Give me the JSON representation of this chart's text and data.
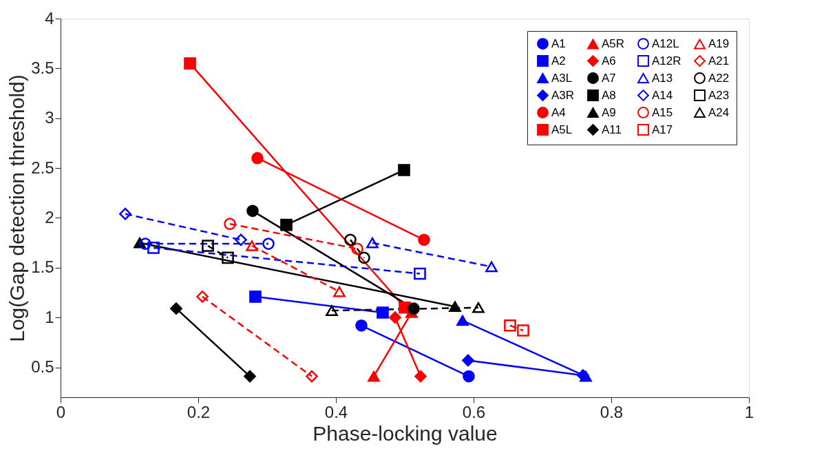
{
  "chart_data": {
    "type": "line",
    "xlabel": "Phase-locking value",
    "ylabel": "Log(Gap detection threshold)",
    "xlim": [
      0,
      1
    ],
    "xticks": [
      0,
      0.2,
      0.4,
      0.6,
      0.8,
      1
    ],
    "ylim": [
      0.2,
      4
    ],
    "yticks": [
      0.5,
      1,
      1.5,
      2,
      2.5,
      3,
      3.5,
      4
    ],
    "grid": false,
    "legend": "top right",
    "series": [
      {
        "name": "A1",
        "color": "#0000ff",
        "marker": "circle",
        "line_style": "solid",
        "x": [
          0.437,
          0.593
        ],
        "values": [
          0.92,
          0.41
        ]
      },
      {
        "name": "A2",
        "color": "#0000ff",
        "marker": "square",
        "line_style": "solid",
        "x": [
          0.283,
          0.468
        ],
        "values": [
          1.21,
          1.05
        ]
      },
      {
        "name": "A3L",
        "color": "#0000ff",
        "marker": "triangle",
        "line_style": "solid",
        "x": [
          0.584,
          0.763
        ],
        "values": [
          0.97,
          0.41
        ]
      },
      {
        "name": "A3R",
        "color": "#0000ff",
        "marker": "diamond",
        "line_style": "solid",
        "x": [
          0.592,
          0.759
        ],
        "values": [
          0.57,
          0.42
        ]
      },
      {
        "name": "A4",
        "color": "#ff0000",
        "marker": "circle",
        "line_style": "solid",
        "x": [
          0.286,
          0.528
        ],
        "values": [
          2.6,
          1.78
        ]
      },
      {
        "name": "A5L",
        "color": "#ff0000",
        "marker": "square",
        "line_style": "solid",
        "x": [
          0.188,
          0.5
        ],
        "values": [
          3.55,
          1.1
        ]
      },
      {
        "name": "A5R",
        "color": "#ff0000",
        "marker": "triangle",
        "line_style": "solid",
        "x": [
          0.455,
          0.51
        ],
        "values": [
          0.41,
          1.05
        ]
      },
      {
        "name": "A6",
        "color": "#ff0000",
        "marker": "diamond",
        "line_style": "solid",
        "x": [
          0.486,
          0.523
        ],
        "values": [
          1.0,
          0.41
        ]
      },
      {
        "name": "A7",
        "color": "#000000",
        "marker": "circle",
        "line_style": "solid",
        "x": [
          0.279,
          0.513
        ],
        "values": [
          2.07,
          1.09
        ]
      },
      {
        "name": "A8",
        "color": "#000000",
        "marker": "square",
        "line_style": "solid",
        "x": [
          0.328,
          0.499
        ],
        "values": [
          1.93,
          2.48
        ]
      },
      {
        "name": "A9",
        "color": "#000000",
        "marker": "triangle",
        "line_style": "solid",
        "x": [
          0.115,
          0.573
        ],
        "values": [
          1.75,
          1.11
        ]
      },
      {
        "name": "A11",
        "color": "#000000",
        "marker": "diamond",
        "line_style": "solid",
        "x": [
          0.168,
          0.275
        ],
        "values": [
          1.09,
          0.41
        ]
      },
      {
        "name": "A12L",
        "color": "#0000ff",
        "marker": "circle",
        "line_style": "dashed",
        "x": [
          0.123,
          0.302
        ],
        "values": [
          1.74,
          1.74
        ]
      },
      {
        "name": "A12R",
        "color": "#0000ff",
        "marker": "square",
        "line_style": "dashed",
        "x": [
          0.135,
          0.522
        ],
        "values": [
          1.7,
          1.44
        ]
      },
      {
        "name": "A13",
        "color": "#0000ff",
        "marker": "triangle",
        "line_style": "dashed",
        "x": [
          0.453,
          0.626
        ],
        "values": [
          1.75,
          1.51
        ]
      },
      {
        "name": "A14",
        "color": "#0000ff",
        "marker": "diamond",
        "line_style": "dashed",
        "x": [
          0.094,
          0.262
        ],
        "values": [
          2.04,
          1.78
        ]
      },
      {
        "name": "A15",
        "color": "#ff0000",
        "marker": "circle",
        "line_style": "dashed",
        "x": [
          0.246,
          0.431
        ],
        "values": [
          1.94,
          1.69
        ]
      },
      {
        "name": "A17",
        "color": "#ff0000",
        "marker": "square",
        "line_style": "dashed",
        "x": [
          0.653,
          0.672
        ],
        "values": [
          0.92,
          0.87
        ]
      },
      {
        "name": "A19",
        "color": "#ff0000",
        "marker": "triangle",
        "line_style": "dashed",
        "x": [
          0.278,
          0.405
        ],
        "values": [
          1.72,
          1.26
        ]
      },
      {
        "name": "A21",
        "color": "#ff0000",
        "marker": "diamond",
        "line_style": "dashed",
        "x": [
          0.206,
          0.365
        ],
        "values": [
          1.21,
          0.41
        ]
      },
      {
        "name": "A22",
        "color": "#000000",
        "marker": "circle",
        "line_style": "dashed",
        "x": [
          0.421,
          0.441
        ],
        "values": [
          1.78,
          1.6
        ]
      },
      {
        "name": "A23",
        "color": "#000000",
        "marker": "square",
        "line_style": "dashed",
        "x": [
          0.214,
          0.243
        ],
        "values": [
          1.72,
          1.6
        ]
      },
      {
        "name": "A24",
        "color": "#000000",
        "marker": "triangle",
        "line_style": "dashed",
        "x": [
          0.394,
          0.607
        ],
        "values": [
          1.07,
          1.1
        ]
      }
    ]
  }
}
